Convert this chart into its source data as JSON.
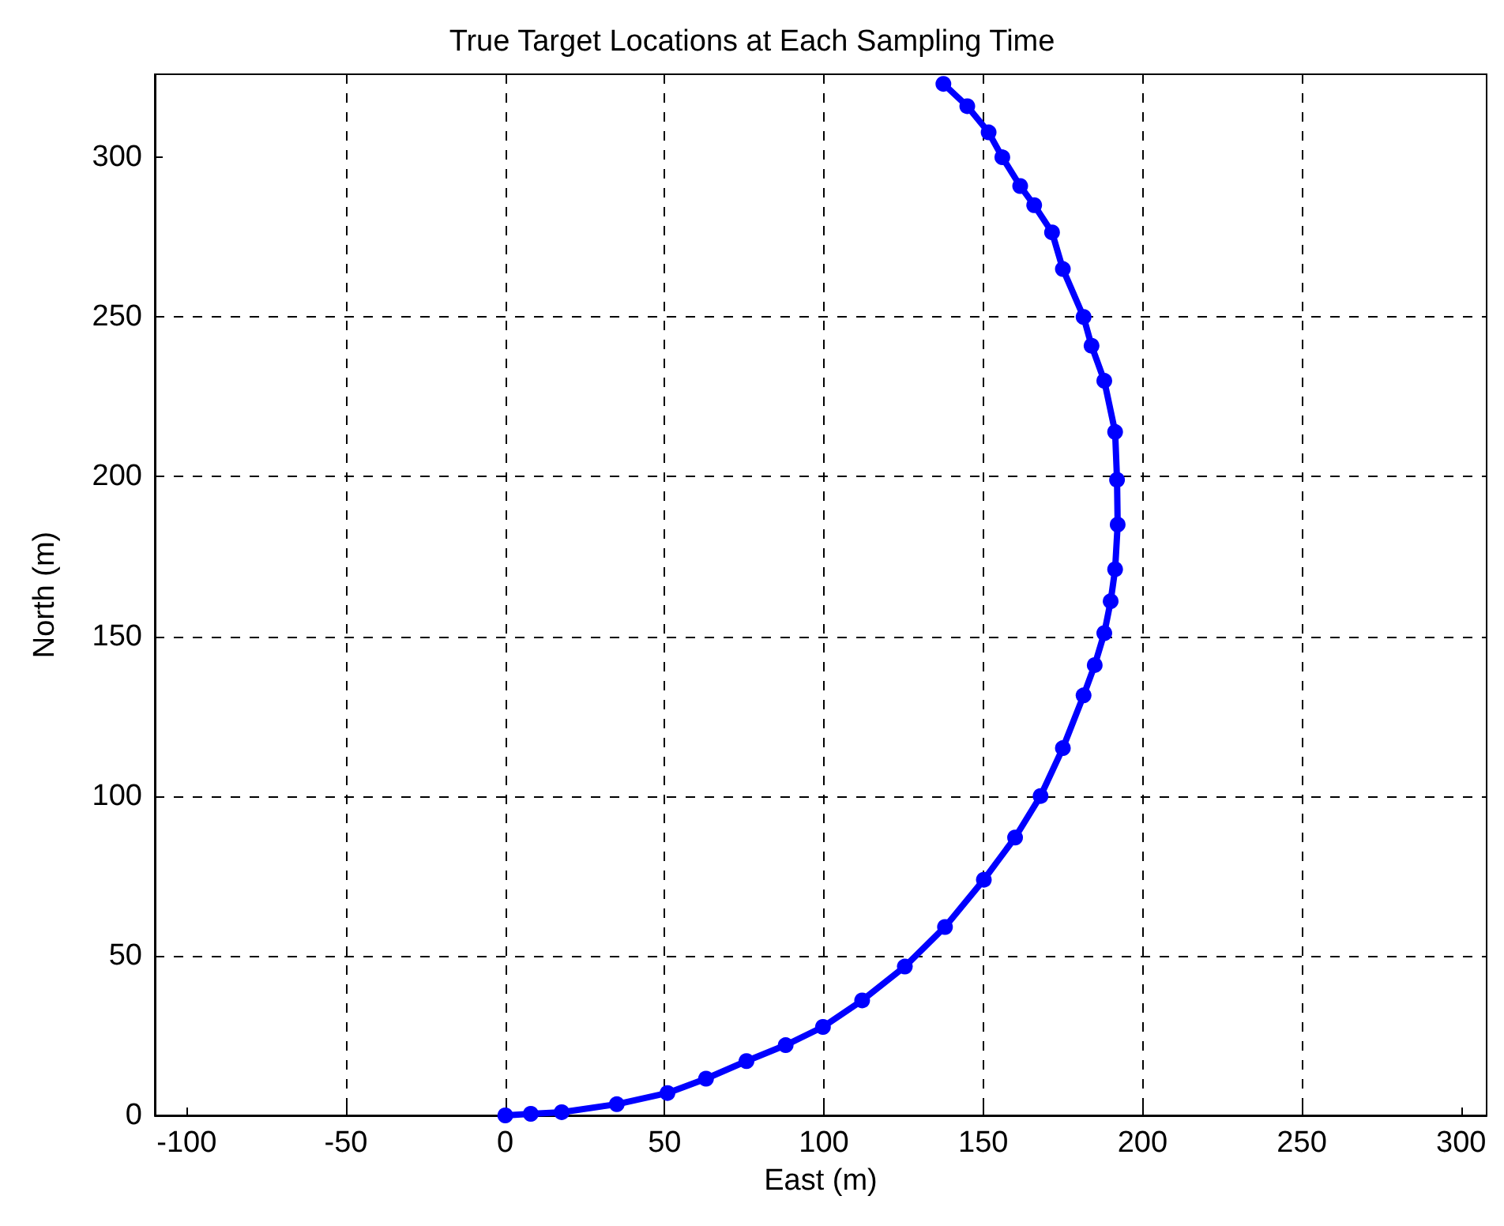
{
  "chart_data": {
    "type": "line",
    "title": "True Target Locations at Each Sampling Time",
    "xlabel": "East (m)",
    "ylabel": "North (m)",
    "x": [
      0,
      8,
      17.7,
      35,
      50.9,
      63,
      75.7,
      88,
      99.7,
      112,
      125.4,
      138,
      150.2,
      160,
      168,
      175,
      181.5,
      185,
      188,
      190,
      191.4,
      192.2,
      192,
      191.4,
      188,
      184,
      181.5,
      175,
      171.6,
      166,
      161.6,
      156,
      151.7,
      145,
      137.5
    ],
    "series": [
      {
        "color": "#0000ff",
        "values": [
          0,
          0.5,
          1,
          3.5,
          7,
          11.5,
          17,
          22,
          27.7,
          36,
          46.6,
          59,
          73.8,
          87,
          100,
          115,
          131.5,
          141,
          151,
          161,
          171,
          185,
          199,
          214,
          230,
          241,
          250,
          265,
          276.5,
          285,
          291,
          300,
          307.8,
          316,
          323
        ]
      }
    ],
    "xlim": [
      -110,
      308
    ],
    "ylim": [
      0,
      326
    ],
    "xticks": [
      -100,
      -50,
      0,
      50,
      100,
      150,
      200,
      250,
      300
    ],
    "yticks": [
      0,
      50,
      100,
      150,
      200,
      250,
      300
    ],
    "grid": true,
    "marker": "circle",
    "line_style": "solid"
  }
}
